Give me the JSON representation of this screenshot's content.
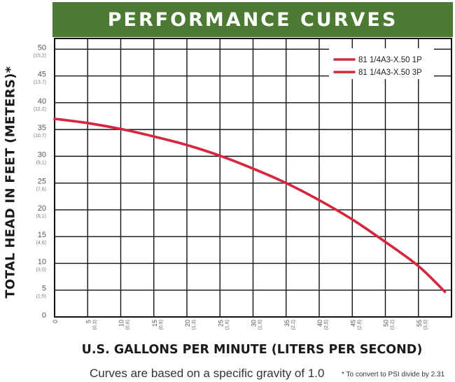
{
  "chart_data": {
    "type": "line",
    "title": "PERFORMANCE CURVES",
    "xlabel": "U.S. GALLONS PER MINUTE (LITERS PER SECOND)",
    "ylabel": "TOTAL HEAD IN FEET (METERS)*",
    "xlim": [
      0,
      60
    ],
    "ylim": [
      0,
      52
    ],
    "grid": true,
    "legend_position": "top-right",
    "x_ticks": [
      {
        "v": 0,
        "label": "0",
        "sub": ""
      },
      {
        "v": 5,
        "label": "5",
        "sub": "(0,3)"
      },
      {
        "v": 10,
        "label": "10",
        "sub": "(0,6)"
      },
      {
        "v": 15,
        "label": "15",
        "sub": "(0,9)"
      },
      {
        "v": 20,
        "label": "20",
        "sub": "(1,3)"
      },
      {
        "v": 25,
        "label": "25",
        "sub": "(1,6)"
      },
      {
        "v": 30,
        "label": "30",
        "sub": "(1,9)"
      },
      {
        "v": 35,
        "label": "35",
        "sub": "(2,2)"
      },
      {
        "v": 40,
        "label": "40",
        "sub": "(2,5)"
      },
      {
        "v": 45,
        "label": "45",
        "sub": "(2,8)"
      },
      {
        "v": 50,
        "label": "50",
        "sub": "(3,2)"
      },
      {
        "v": 55,
        "label": "55",
        "sub": "(3,5)"
      }
    ],
    "y_ticks": [
      {
        "v": 0,
        "label": "0",
        "sub": ""
      },
      {
        "v": 5,
        "label": "5",
        "sub": "(1,5)"
      },
      {
        "v": 10,
        "label": "10",
        "sub": "(3,0)"
      },
      {
        "v": 15,
        "label": "15",
        "sub": "(4,6)"
      },
      {
        "v": 20,
        "label": "20",
        "sub": "(6,1)"
      },
      {
        "v": 25,
        "label": "25",
        "sub": "(7,6)"
      },
      {
        "v": 30,
        "label": "30",
        "sub": "(9,1)"
      },
      {
        "v": 35,
        "label": "35",
        "sub": "(10,7)"
      },
      {
        "v": 40,
        "label": "40",
        "sub": "(12,2)"
      },
      {
        "v": 45,
        "label": "45",
        "sub": "(13,7)"
      },
      {
        "v": 50,
        "label": "50",
        "sub": "(15,2)"
      }
    ],
    "series": [
      {
        "name": "81 1/4A3-X.50 1P",
        "color": "#d7263d",
        "x": [
          0,
          5,
          10,
          15,
          20,
          25,
          30,
          35,
          40,
          45,
          50,
          55,
          59
        ],
        "y": [
          37,
          36.2,
          35.1,
          33.7,
          32.1,
          30.1,
          27.7,
          25,
          21.8,
          18.2,
          14,
          9.5,
          4.7
        ]
      },
      {
        "name": "81 1/4A3-X.50 3P",
        "color": "#d7263d",
        "x": [
          0,
          5,
          10,
          15,
          20,
          25,
          30,
          35,
          40,
          45,
          50,
          55,
          59
        ],
        "y": [
          37,
          36.2,
          35.1,
          33.7,
          32.1,
          30.1,
          27.7,
          25,
          21.8,
          18.2,
          14,
          9.5,
          4.7
        ]
      }
    ]
  },
  "footnotes": {
    "main": "Curves are based on a specific gravity of 1.0",
    "psi": "* To convert to PSI divide by 2.31"
  }
}
